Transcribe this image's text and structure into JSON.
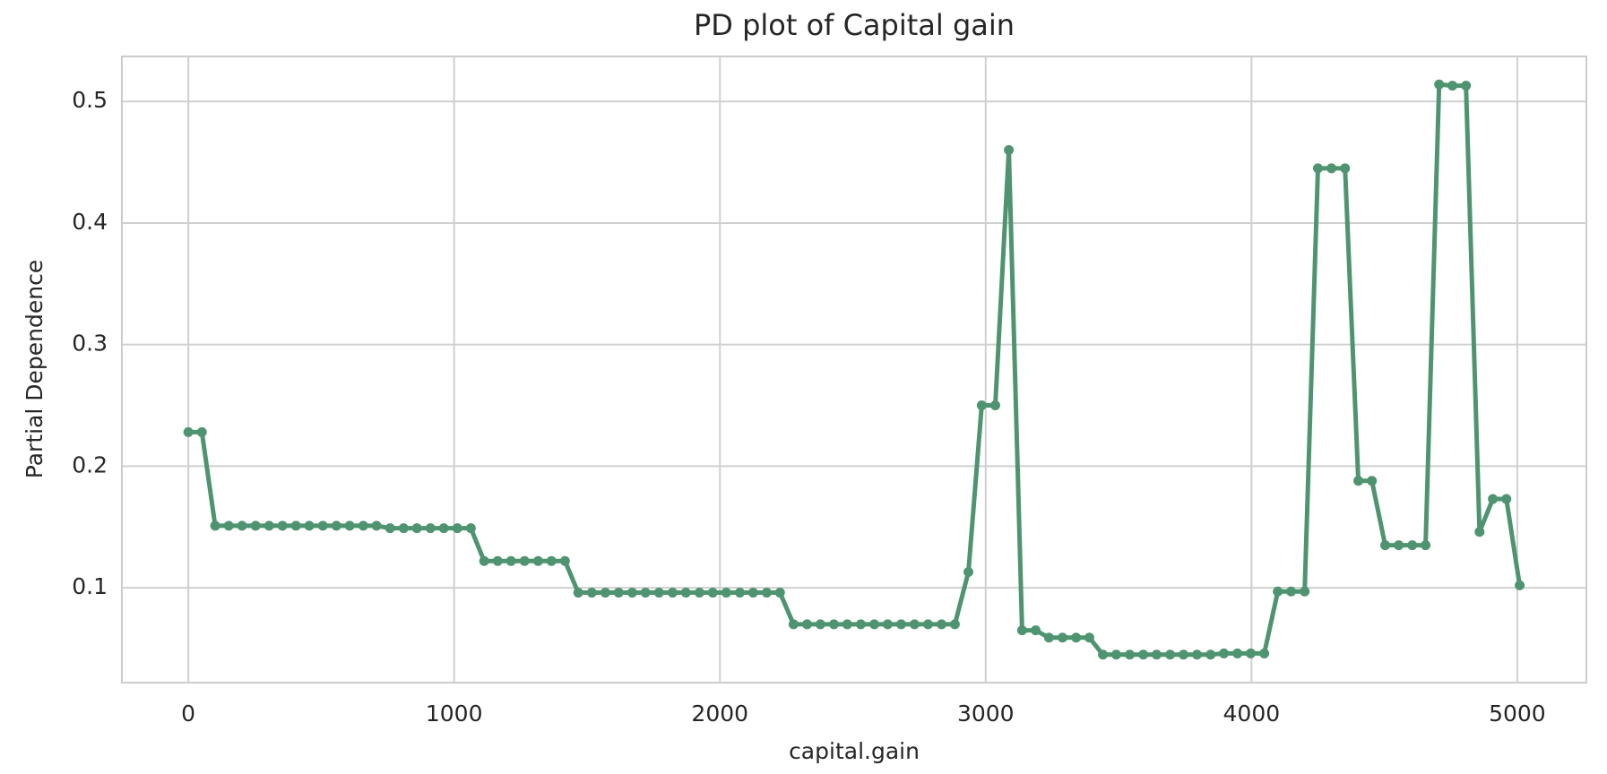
{
  "chart_data": {
    "type": "line",
    "title": "PD plot of Capital gain",
    "xlabel": "capital.gain",
    "ylabel": "Partial Dependence",
    "x": [
      0,
      51,
      101,
      152,
      202,
      253,
      304,
      354,
      405,
      455,
      506,
      557,
      607,
      658,
      708,
      759,
      810,
      860,
      911,
      961,
      1012,
      1063,
      1113,
      1164,
      1214,
      1265,
      1316,
      1366,
      1417,
      1467,
      1518,
      1569,
      1619,
      1670,
      1720,
      1771,
      1822,
      1872,
      1923,
      1973,
      2024,
      2075,
      2125,
      2176,
      2226,
      2277,
      2328,
      2378,
      2429,
      2479,
      2530,
      2581,
      2631,
      2682,
      2732,
      2783,
      2834,
      2884,
      2935,
      2985,
      3036,
      3087,
      3137,
      3188,
      3238,
      3289,
      3340,
      3390,
      3441,
      3491,
      3542,
      3593,
      3643,
      3694,
      3744,
      3795,
      3846,
      3896,
      3947,
      3997,
      4048,
      4099,
      4149,
      4200,
      4250,
      4301,
      4352,
      4402,
      4453,
      4503,
      4554,
      4605,
      4655,
      4706,
      4756,
      4807,
      4858,
      4908,
      4959,
      5009
    ],
    "values": [
      0.228,
      0.228,
      0.151,
      0.151,
      0.151,
      0.151,
      0.151,
      0.151,
      0.151,
      0.151,
      0.151,
      0.151,
      0.151,
      0.151,
      0.151,
      0.149,
      0.149,
      0.149,
      0.149,
      0.149,
      0.149,
      0.149,
      0.122,
      0.122,
      0.122,
      0.122,
      0.122,
      0.122,
      0.122,
      0.096,
      0.096,
      0.096,
      0.096,
      0.096,
      0.096,
      0.096,
      0.096,
      0.096,
      0.096,
      0.096,
      0.096,
      0.096,
      0.096,
      0.096,
      0.096,
      0.07,
      0.07,
      0.07,
      0.07,
      0.07,
      0.07,
      0.07,
      0.07,
      0.07,
      0.07,
      0.07,
      0.07,
      0.07,
      0.113,
      0.25,
      0.25,
      0.46,
      0.065,
      0.065,
      0.059,
      0.059,
      0.059,
      0.059,
      0.045,
      0.045,
      0.045,
      0.045,
      0.045,
      0.045,
      0.045,
      0.045,
      0.045,
      0.046,
      0.046,
      0.046,
      0.046,
      0.097,
      0.097,
      0.097,
      0.445,
      0.445,
      0.445,
      0.188,
      0.188,
      0.135,
      0.135,
      0.135,
      0.135,
      0.514,
      0.513,
      0.513,
      0.146,
      0.173,
      0.173,
      0.102
    ],
    "color": "#4f9470",
    "xlim": [
      -250,
      5260
    ],
    "ylim": [
      0.022,
      0.537
    ],
    "xticks": [
      0,
      1000,
      2000,
      3000,
      4000,
      5000
    ],
    "yticks": [
      0.1,
      0.2,
      0.3,
      0.4,
      0.5
    ],
    "grid": true
  }
}
